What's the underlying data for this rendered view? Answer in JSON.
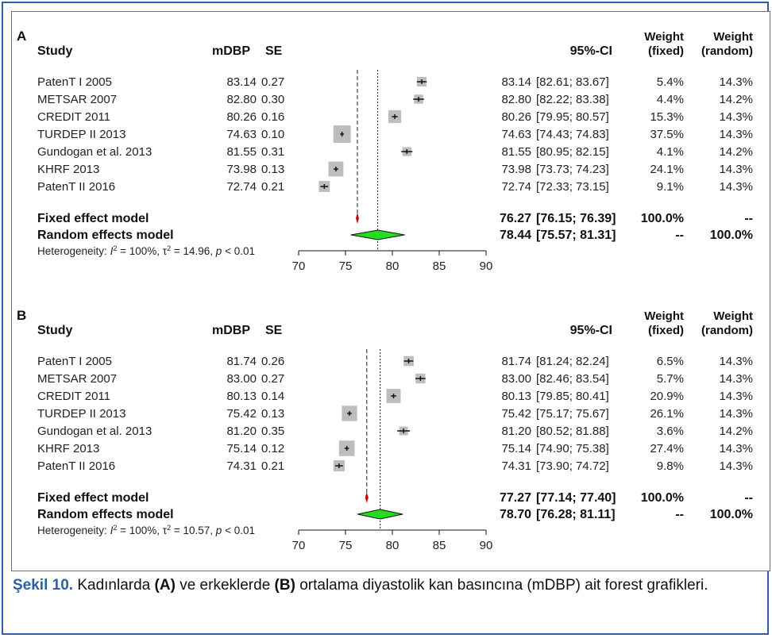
{
  "caption": {
    "label": "Şekil 10.",
    "text_1": " Kadınlarda ",
    "a": "(A)",
    "text_2": " ve erkeklerde ",
    "b": "(B)",
    "text_3": " ortalama diyastolik kan basıncına (mDBP) ait forest grafikleri."
  },
  "chart_data": [
    {
      "type": "forest",
      "panel_label": "A",
      "headers": {
        "study": "Study",
        "mean": "mDBP",
        "se": "SE",
        "ci": "95%-CI",
        "weight": "Weight",
        "fixed": "(fixed)",
        "random": "(random)"
      },
      "xlim": [
        70,
        90
      ],
      "ticks": [
        70,
        75,
        80,
        85,
        90
      ],
      "studies": [
        {
          "name": "PatenT I 2005",
          "mdbp": "83.14",
          "se": "0.27",
          "est": 83.14,
          "lo": 82.61,
          "hi": 83.67,
          "est_txt": "83.14",
          "ci_txt": "[82.61; 83.67]",
          "w_fixed": "5.4%",
          "w_random": "14.3%",
          "wf": 5.4
        },
        {
          "name": "METSAR 2007",
          "mdbp": "82.80",
          "se": "0.30",
          "est": 82.8,
          "lo": 82.22,
          "hi": 83.38,
          "est_txt": "82.80",
          "ci_txt": "[82.22; 83.38]",
          "w_fixed": "4.4%",
          "w_random": "14.2%",
          "wf": 4.4
        },
        {
          "name": "CREDIT 2011",
          "mdbp": "80.26",
          "se": "0.16",
          "est": 80.26,
          "lo": 79.95,
          "hi": 80.57,
          "est_txt": "80.26",
          "ci_txt": "[79.95; 80.57]",
          "w_fixed": "15.3%",
          "w_random": "14.3%",
          "wf": 15.3
        },
        {
          "name": "TURDEP II 2013",
          "mdbp": "74.63",
          "se": "0.10",
          "est": 74.63,
          "lo": 74.43,
          "hi": 74.83,
          "est_txt": "74.63",
          "ci_txt": "[74.43; 74.83]",
          "w_fixed": "37.5%",
          "w_random": "14.3%",
          "wf": 37.5
        },
        {
          "name": "Gundogan et al. 2013",
          "mdbp": "81.55",
          "se": "0.31",
          "est": 81.55,
          "lo": 80.95,
          "hi": 82.15,
          "est_txt": "81.55",
          "ci_txt": "[80.95; 82.15]",
          "w_fixed": "4.1%",
          "w_random": "14.2%",
          "wf": 4.1
        },
        {
          "name": "KHRF 2013",
          "mdbp": "73.98",
          "se": "0.13",
          "est": 73.98,
          "lo": 73.73,
          "hi": 74.23,
          "est_txt": "73.98",
          "ci_txt": "[73.73; 74.23]",
          "w_fixed": "24.1%",
          "w_random": "14.3%",
          "wf": 24.1
        },
        {
          "name": "PatenT II 2016",
          "mdbp": "72.74",
          "se": "0.21",
          "est": 72.74,
          "lo": 72.33,
          "hi": 73.15,
          "est_txt": "72.74",
          "ci_txt": "[72.33; 73.15]",
          "w_fixed": "9.1%",
          "w_random": "14.3%",
          "wf": 9.1
        }
      ],
      "fixed": {
        "label": "Fixed effect model",
        "est": 76.27,
        "lo": 76.15,
        "hi": 76.39,
        "est_txt": "76.27",
        "ci_txt": "[76.15; 76.39]",
        "w_fixed": "100.0%",
        "w_random": "--"
      },
      "random": {
        "label": "Random effects model",
        "est": 78.44,
        "lo": 75.57,
        "hi": 81.31,
        "est_txt": "78.44",
        "ci_txt": "[75.57; 81.31]",
        "w_fixed": "--",
        "w_random": "100.0%"
      },
      "heterogeneity": {
        "prefix": "Heterogeneity: ",
        "i2_sym": "I",
        "i2_val": " = 100%, ",
        "tau_sym": "τ",
        "tau_val": " = 14.96, ",
        "p_sym": "p",
        "p_val": " < 0.01"
      }
    },
    {
      "type": "forest",
      "panel_label": "B",
      "headers": {
        "study": "Study",
        "mean": "mDBP",
        "se": "SE",
        "ci": "95%-CI",
        "weight": "Weight",
        "fixed": "(fixed)",
        "random": "(random)"
      },
      "xlim": [
        70,
        90
      ],
      "ticks": [
        70,
        75,
        80,
        85,
        90
      ],
      "studies": [
        {
          "name": "PatenT I 2005",
          "mdbp": "81.74",
          "se": "0.26",
          "est": 81.74,
          "lo": 81.24,
          "hi": 82.24,
          "est_txt": "81.74",
          "ci_txt": "[81.24; 82.24]",
          "w_fixed": "6.5%",
          "w_random": "14.3%",
          "wf": 6.5
        },
        {
          "name": "METSAR 2007",
          "mdbp": "83.00",
          "se": "0.27",
          "est": 83.0,
          "lo": 82.46,
          "hi": 83.54,
          "est_txt": "83.00",
          "ci_txt": "[82.46; 83.54]",
          "w_fixed": "5.7%",
          "w_random": "14.3%",
          "wf": 5.7
        },
        {
          "name": "CREDIT 2011",
          "mdbp": "80.13",
          "se": "0.14",
          "est": 80.13,
          "lo": 79.85,
          "hi": 80.41,
          "est_txt": "80.13",
          "ci_txt": "[79.85; 80.41]",
          "w_fixed": "20.9%",
          "w_random": "14.3%",
          "wf": 20.9
        },
        {
          "name": "TURDEP II 2013",
          "mdbp": "75.42",
          "se": "0.13",
          "est": 75.42,
          "lo": 75.17,
          "hi": 75.67,
          "est_txt": "75.42",
          "ci_txt": "[75.17; 75.67]",
          "w_fixed": "26.1%",
          "w_random": "14.3%",
          "wf": 26.1
        },
        {
          "name": "Gundogan et al. 2013",
          "mdbp": "81.20",
          "se": "0.35",
          "est": 81.2,
          "lo": 80.52,
          "hi": 81.88,
          "est_txt": "81.20",
          "ci_txt": "[80.52; 81.88]",
          "w_fixed": "3.6%",
          "w_random": "14.2%",
          "wf": 3.6
        },
        {
          "name": "KHRF 2013",
          "mdbp": "75.14",
          "se": "0.12",
          "est": 75.14,
          "lo": 74.9,
          "hi": 75.38,
          "est_txt": "75.14",
          "ci_txt": "[74.90; 75.38]",
          "w_fixed": "27.4%",
          "w_random": "14.3%",
          "wf": 27.4
        },
        {
          "name": "PatenT II 2016",
          "mdbp": "74.31",
          "se": "0.21",
          "est": 74.31,
          "lo": 73.9,
          "hi": 74.72,
          "est_txt": "74.31",
          "ci_txt": "[73.90; 74.72]",
          "w_fixed": "9.8%",
          "w_random": "14.3%",
          "wf": 9.8
        }
      ],
      "fixed": {
        "label": "Fixed effect model",
        "est": 77.27,
        "lo": 77.14,
        "hi": 77.4,
        "est_txt": "77.27",
        "ci_txt": "[77.14; 77.40]",
        "w_fixed": "100.0%",
        "w_random": "--"
      },
      "random": {
        "label": "Random effects model",
        "est": 78.7,
        "lo": 76.28,
        "hi": 81.11,
        "est_txt": "78.70",
        "ci_txt": "[76.28; 81.11]",
        "w_fixed": "--",
        "w_random": "100.0%"
      },
      "heterogeneity": {
        "prefix": "Heterogeneity: ",
        "i2_sym": "I",
        "i2_val": " = 100%, ",
        "tau_sym": "τ",
        "tau_val": " = 10.57, ",
        "p_sym": "p",
        "p_val": " < 0.01"
      }
    }
  ],
  "colors": {
    "diamond": "#22dd22",
    "square": "#bdbdbd",
    "fixed_marker": "#cc0000",
    "frame": "#2d5fa6",
    "caption_label": "#2d5fa6"
  }
}
